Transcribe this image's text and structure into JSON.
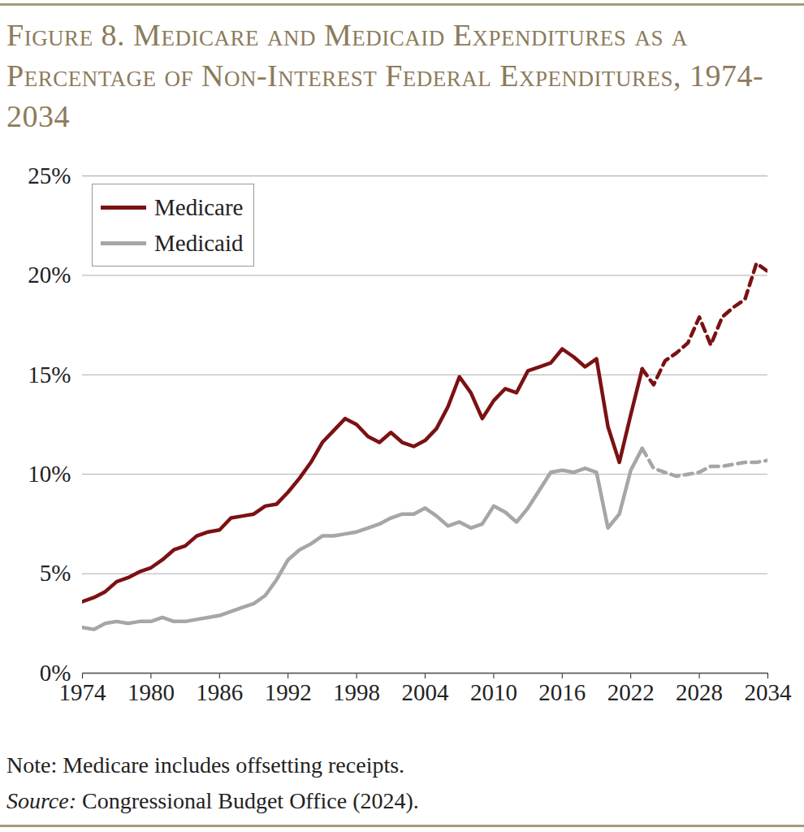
{
  "chart_data": {
    "type": "line",
    "title": "Figure 8. Medicare and Medicaid Expenditures as a Percentage of Non-Interest Federal Expenditures, 1974-2034",
    "notes": [
      "Note: Medicare includes offsetting receipts.",
      "Source: Congressional Budget Office (2024)."
    ],
    "x": [
      1974,
      1975,
      1976,
      1977,
      1978,
      1979,
      1980,
      1981,
      1982,
      1983,
      1984,
      1985,
      1986,
      1987,
      1988,
      1989,
      1990,
      1991,
      1992,
      1993,
      1994,
      1995,
      1996,
      1997,
      1998,
      1999,
      2000,
      2001,
      2002,
      2003,
      2004,
      2005,
      2006,
      2007,
      2008,
      2009,
      2010,
      2011,
      2012,
      2013,
      2014,
      2015,
      2016,
      2017,
      2018,
      2019,
      2020,
      2021,
      2022,
      2023,
      2024,
      2025,
      2026,
      2027,
      2028,
      2029,
      2030,
      2031,
      2032,
      2033,
      2034
    ],
    "series": [
      {
        "name": "Medicare",
        "color": "#7b1113",
        "line_style": "solid",
        "values": [
          3.6,
          3.8,
          4.1,
          4.6,
          4.8,
          5.1,
          5.3,
          5.7,
          6.2,
          6.4,
          6.9,
          7.1,
          7.2,
          7.8,
          7.9,
          8.0,
          8.4,
          8.5,
          9.1,
          9.8,
          10.6,
          11.6,
          12.2,
          12.8,
          12.5,
          11.9,
          11.6,
          12.1,
          11.6,
          11.4,
          11.7,
          12.3,
          13.4,
          14.9,
          14.1,
          12.8,
          13.7,
          14.3,
          14.1,
          15.2,
          15.4,
          15.6,
          16.3,
          15.9,
          15.4,
          15.8,
          12.4,
          10.6,
          13.0,
          15.3,
          null,
          null,
          null,
          null,
          null,
          null,
          null,
          null,
          null,
          null,
          null
        ]
      },
      {
        "name": "Medicaid",
        "color": "#a6a6a6",
        "line_style": "solid",
        "values": [
          2.3,
          2.2,
          2.5,
          2.6,
          2.5,
          2.6,
          2.6,
          2.8,
          2.6,
          2.6,
          2.7,
          2.8,
          2.9,
          3.1,
          3.3,
          3.5,
          3.9,
          4.7,
          5.7,
          6.2,
          6.5,
          6.9,
          6.9,
          7.0,
          7.1,
          7.3,
          7.5,
          7.8,
          8.0,
          8.0,
          8.3,
          7.9,
          7.4,
          7.6,
          7.3,
          7.5,
          8.4,
          8.1,
          7.6,
          8.3,
          9.2,
          10.1,
          10.2,
          10.1,
          10.3,
          10.1,
          7.3,
          8.0,
          10.2,
          11.3,
          null,
          null,
          null,
          null,
          null,
          null,
          null,
          null,
          null,
          null,
          null
        ]
      },
      {
        "name": "Medicare",
        "color": "#7b1113",
        "line_style": "dashed",
        "values": [
          null,
          null,
          null,
          null,
          null,
          null,
          null,
          null,
          null,
          null,
          null,
          null,
          null,
          null,
          null,
          null,
          null,
          null,
          null,
          null,
          null,
          null,
          null,
          null,
          null,
          null,
          null,
          null,
          null,
          null,
          null,
          null,
          null,
          null,
          null,
          null,
          null,
          null,
          null,
          null,
          null,
          null,
          null,
          null,
          null,
          null,
          null,
          null,
          null,
          15.3,
          14.5,
          15.7,
          16.1,
          16.6,
          17.9,
          16.5,
          17.9,
          18.4,
          18.8,
          20.6,
          20.2
        ]
      },
      {
        "name": "Medicaid",
        "color": "#a6a6a6",
        "line_style": "dashed",
        "values": [
          null,
          null,
          null,
          null,
          null,
          null,
          null,
          null,
          null,
          null,
          null,
          null,
          null,
          null,
          null,
          null,
          null,
          null,
          null,
          null,
          null,
          null,
          null,
          null,
          null,
          null,
          null,
          null,
          null,
          null,
          null,
          null,
          null,
          null,
          null,
          null,
          null,
          null,
          null,
          null,
          null,
          null,
          null,
          null,
          null,
          null,
          null,
          null,
          null,
          11.3,
          10.3,
          10.1,
          9.9,
          10.0,
          10.1,
          10.4,
          10.4,
          10.5,
          10.6,
          10.6,
          10.7
        ]
      }
    ],
    "xlim": [
      1974,
      2034
    ],
    "xticks": [
      1974,
      1980,
      1986,
      1992,
      1998,
      2004,
      2010,
      2016,
      2022,
      2028,
      2034
    ],
    "ylim": [
      0,
      25
    ],
    "yticks": [
      {
        "value": 0,
        "label": "0%"
      },
      {
        "value": 5,
        "label": "5%"
      },
      {
        "value": 10,
        "label": "10%"
      },
      {
        "value": 15,
        "label": "15%"
      },
      {
        "value": 20,
        "label": "20%"
      },
      {
        "value": 25,
        "label": "25%"
      }
    ],
    "grid": true,
    "legend": "top-left"
  }
}
